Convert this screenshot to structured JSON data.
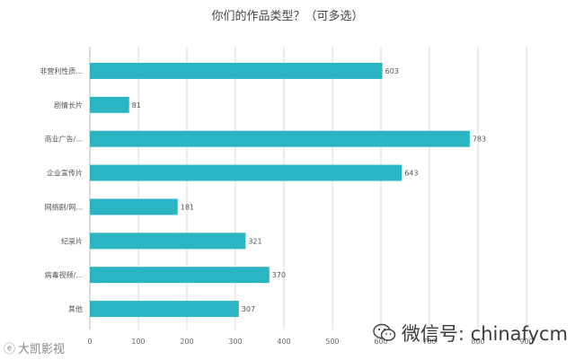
{
  "chart_data": {
    "type": "bar",
    "orientation": "horizontal",
    "title": "你们的作品类型？（可多选）",
    "categories": [
      "非营利性质...",
      "剧情长片",
      "商业广告/...",
      "企业宣传片",
      "网络剧/网...",
      "纪录片",
      "病毒视频/...",
      "其他"
    ],
    "values": [
      603,
      81,
      783,
      643,
      181,
      321,
      370,
      307
    ],
    "xlim": [
      0,
      900
    ],
    "xticks": [
      0,
      100,
      200,
      300,
      400,
      500,
      600,
      700,
      800,
      900
    ],
    "grid": true,
    "legend": "none",
    "bar_color": "#2bb5c3"
  },
  "watermarks": {
    "right": "微信号: chinafycm",
    "left": "大凯影视"
  }
}
